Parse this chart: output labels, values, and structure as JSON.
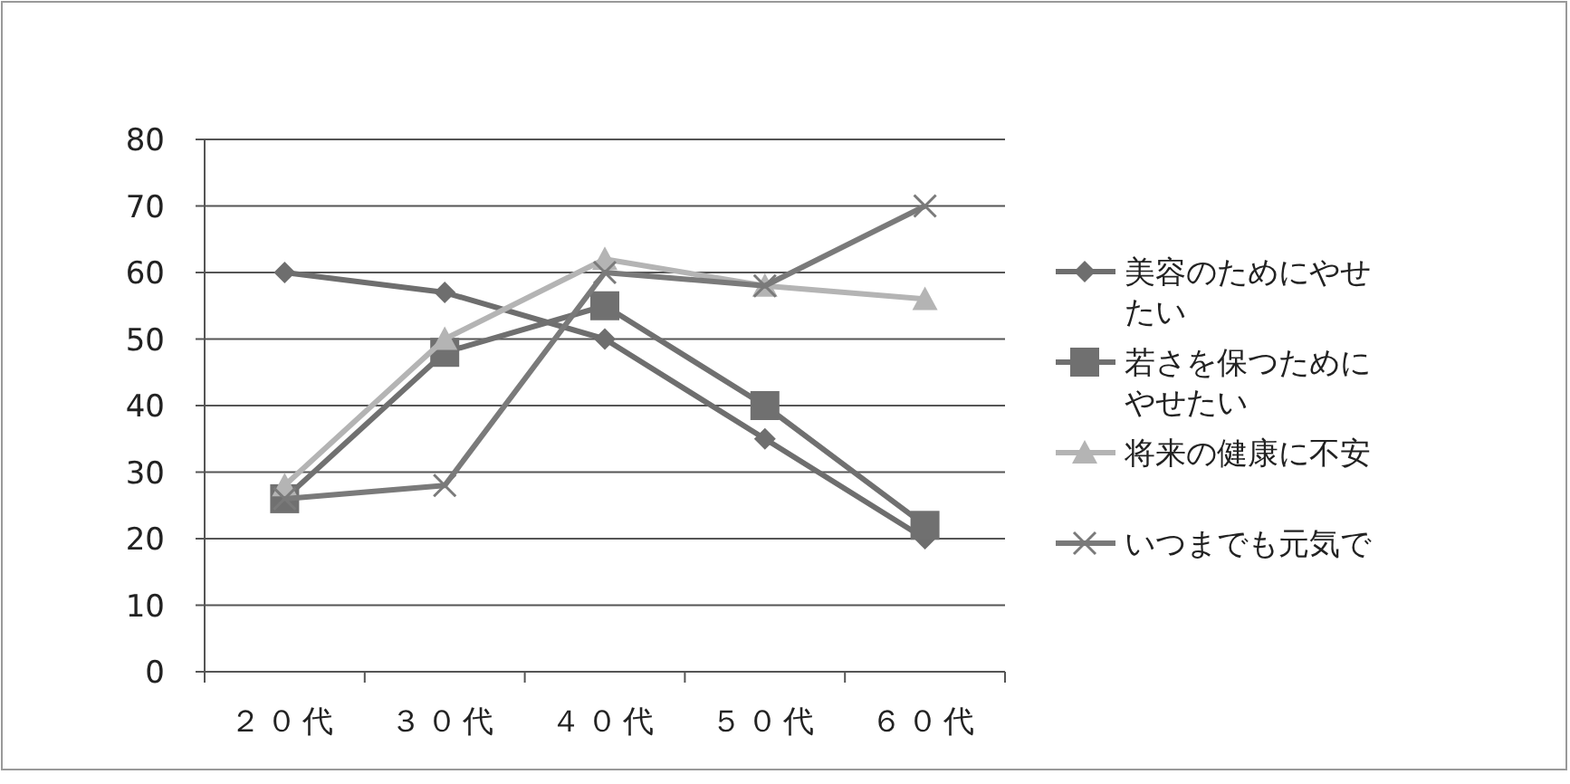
{
  "chart_data": {
    "type": "line",
    "categories": [
      "２０代",
      "３０代",
      "４０代",
      "５０代",
      "６０代"
    ],
    "series": [
      {
        "name": "美容のためにやせたい",
        "color": "#6e6e6e",
        "marker": "diamond",
        "values": [
          60,
          57,
          50,
          35,
          20
        ]
      },
      {
        "name": "若さを保つためにやせたい",
        "color": "#707070",
        "marker": "square",
        "values": [
          26,
          48,
          55,
          40,
          22
        ]
      },
      {
        "name": "将来の健康に不安",
        "color": "#b4b4b4",
        "marker": "triangle",
        "values": [
          28,
          50,
          62,
          58,
          56
        ]
      },
      {
        "name": "いつまでも元気で",
        "color": "#7a7a7a",
        "marker": "cross",
        "values": [
          26,
          28,
          60,
          58,
          70
        ]
      }
    ],
    "ylim": [
      0,
      80
    ],
    "yticks": [
      0,
      10,
      20,
      30,
      40,
      50,
      60,
      70,
      80
    ],
    "grid": "y",
    "legend": "right"
  }
}
